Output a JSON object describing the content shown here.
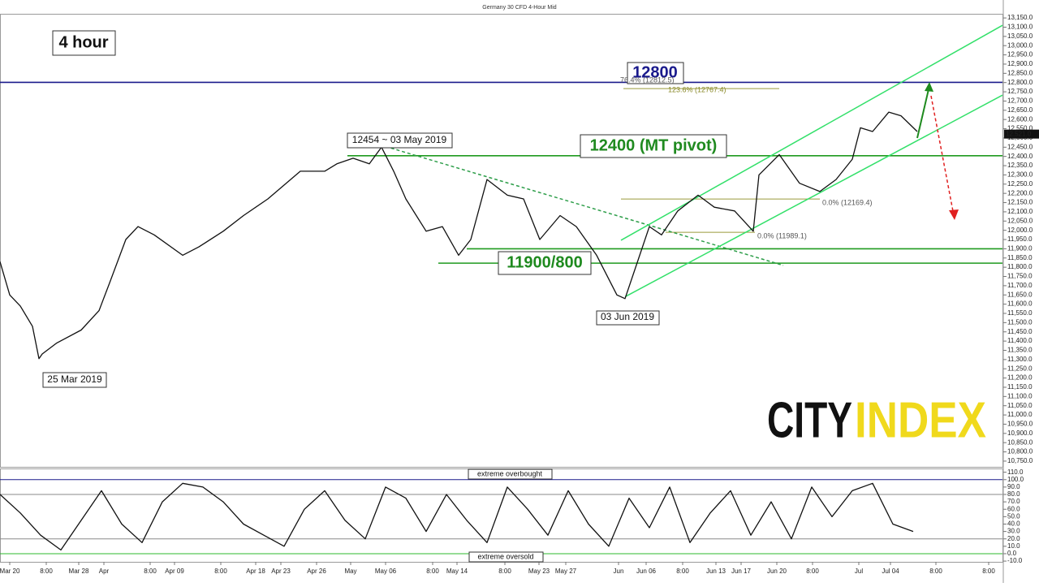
{
  "chart_data": [
    {
      "type": "line",
      "title": "Germany 30 CFD 4-Hour Mid",
      "xlim": [
        0,
        247
      ],
      "ylim": [
        10719,
        13168
      ],
      "yticks": [
        {
          "value": 13150,
          "label": "13,150.0"
        },
        {
          "value": 13100,
          "label": "13,100.0"
        },
        {
          "value": 13050,
          "label": "13,050.0"
        },
        {
          "value": 13000,
          "label": "13,000.0"
        },
        {
          "value": 12950,
          "label": "12,950.0"
        },
        {
          "value": 12900,
          "label": "12,900.0"
        },
        {
          "value": 12850,
          "label": "12,850.0"
        },
        {
          "value": 12800,
          "label": "12,800.0"
        },
        {
          "value": 12750,
          "label": "12,750.0"
        },
        {
          "value": 12700,
          "label": "12,700.0"
        },
        {
          "value": 12650,
          "label": "12,650.0"
        },
        {
          "value": 12600,
          "label": "12,600.0"
        },
        {
          "value": 12550,
          "label": "12,550.0"
        },
        {
          "value": 12500,
          "label": "12,500.0"
        },
        {
          "value": 12450,
          "label": "12,450.0"
        },
        {
          "value": 12400,
          "label": "12,400.0"
        },
        {
          "value": 12350,
          "label": "12,350.0"
        },
        {
          "value": 12300,
          "label": "12,300.0"
        },
        {
          "value": 12250,
          "label": "12,250.0"
        },
        {
          "value": 12200,
          "label": "12,200.0"
        },
        {
          "value": 12150,
          "label": "12,150.0"
        },
        {
          "value": 12100,
          "label": "12,100.0"
        },
        {
          "value": 12050,
          "label": "12,050.0"
        },
        {
          "value": 12000,
          "label": "12,000.0"
        },
        {
          "value": 11950,
          "label": "11,950.0"
        },
        {
          "value": 11900,
          "label": "11,900.0"
        },
        {
          "value": 11850,
          "label": "11,850.0"
        },
        {
          "value": 11800,
          "label": "11,800.0"
        },
        {
          "value": 11750,
          "label": "11,750.0"
        },
        {
          "value": 11700,
          "label": "11,700.0"
        },
        {
          "value": 11650,
          "label": "11,650.0"
        },
        {
          "value": 11600,
          "label": "11,600.0"
        },
        {
          "value": 11550,
          "label": "11,550.0"
        },
        {
          "value": 11500,
          "label": "11,500.0"
        },
        {
          "value": 11450,
          "label": "11,450.0"
        },
        {
          "value": 11400,
          "label": "11,400.0"
        },
        {
          "value": 11350,
          "label": "11,350.0"
        },
        {
          "value": 11300,
          "label": "11,300.0"
        },
        {
          "value": 11250,
          "label": "11,250.0"
        },
        {
          "value": 11200,
          "label": "11,200.0"
        },
        {
          "value": 11150,
          "label": "11,150.0"
        },
        {
          "value": 11100,
          "label": "11,100.0"
        },
        {
          "value": 11050,
          "label": "11,050.0"
        },
        {
          "value": 11000,
          "label": "11,000.0"
        },
        {
          "value": 10950,
          "label": "10,950.0"
        },
        {
          "value": 10900,
          "label": "10,900.0"
        },
        {
          "value": 10850,
          "label": "10,850.0"
        },
        {
          "value": 10800,
          "label": "10,800.0"
        },
        {
          "value": 10750,
          "label": "10,750.0"
        }
      ],
      "series": [
        {
          "color": "#111111",
          "x": [
            0,
            2.4,
            5,
            8,
            9.6,
            10.4,
            14,
            20,
            24.4,
            27,
            31,
            34,
            38,
            45,
            49,
            55,
            60,
            66,
            74,
            80,
            83,
            87,
            91,
            94,
            97,
            100,
            105,
            109,
            113,
            116,
            120,
            125,
            129,
            133,
            138,
            142,
            147,
            152,
            154,
            157,
            160,
            163,
            167,
            172,
            176,
            181,
            185.6,
            187,
            192,
            197,
            202,
            206,
            210,
            212,
            215,
            219,
            222,
            226
          ],
          "values": [
            11830,
            11650,
            11590,
            11480,
            11305,
            11330,
            11390,
            11460,
            11565,
            11715,
            11950,
            12020,
            11975,
            11865,
            11910,
            11995,
            12080,
            12170,
            12320,
            12320,
            12360,
            12390,
            12360,
            12450,
            12320,
            12170,
            11995,
            12020,
            11865,
            11950,
            12275,
            12190,
            12170,
            11950,
            12080,
            12020,
            11865,
            11650,
            11630,
            11825,
            12020,
            11975,
            12105,
            12190,
            12125,
            12105,
            11995,
            12300,
            12410,
            12255,
            12210,
            12275,
            12385,
            12555,
            12535,
            12640,
            12620,
            12535
          ]
        }
      ],
      "levels": [
        {
          "value": 12801,
          "x_start": 0,
          "color": "#1a1a8c"
        },
        {
          "value": 12404,
          "x_start": 85.6,
          "color": "#1f9a1f"
        },
        {
          "value": 11900,
          "x_start": 115,
          "color": "#1f9a1f"
        },
        {
          "value": 11822,
          "x_start": 108,
          "color": "#1f9a1f"
        }
      ],
      "trendlines": [
        {
          "x1": 95,
          "y1": 12454,
          "x2": 193,
          "y2": 11810,
          "color": "#2e9e4a",
          "dashed": true
        },
        {
          "x1": 153,
          "y1": 11946,
          "x2": 247,
          "y2": 13110,
          "color": "#33e06a",
          "dashed": false
        },
        {
          "x1": 154,
          "y1": 11640,
          "x2": 247,
          "y2": 12732,
          "color": "#33e06a",
          "dashed": false
        }
      ],
      "fib_lines": [
        {
          "value": 12767.4,
          "x_start": 153.6,
          "x_end": 192,
          "color": "#9a9a3a"
        },
        {
          "value": 12169.4,
          "x_start": 153,
          "x_end": 202,
          "color": "#9a9a3a"
        },
        {
          "value": 11989.1,
          "x_start": 164,
          "x_end": 186,
          "color": "#9a9a3a"
        }
      ],
      "last_price": {
        "value": 12521,
        "label": "12,521.0"
      },
      "annotations": [
        "4 hour",
        "12800",
        "12400 (MT pivot)",
        "11900/800",
        "12454 ~ 03 May 2019",
        "25 Mar 2019",
        "03 Jun 2019",
        "76.4% (12812.5)",
        "123.6% (12767.4)",
        "0.0% (12169.4)",
        "0.0% (11989.1)"
      ]
    },
    {
      "type": "line",
      "xlim": [
        0,
        247
      ],
      "ylim": [
        -11,
        114
      ],
      "yticks": [
        {
          "value": 110,
          "label": "110.0"
        },
        {
          "value": 100,
          "label": "100.0"
        },
        {
          "value": 90,
          "label": "90.0"
        },
        {
          "value": 80,
          "label": "80.0"
        },
        {
          "value": 70,
          "label": "70.0"
        },
        {
          "value": 60,
          "label": "60.0"
        },
        {
          "value": 50,
          "label": "50.0"
        },
        {
          "value": 40,
          "label": "40.0"
        },
        {
          "value": 30,
          "label": "30.0"
        },
        {
          "value": 20,
          "label": "20.0"
        },
        {
          "value": 10,
          "label": "10.0"
        },
        {
          "value": 0,
          "label": "0.0"
        },
        {
          "value": -10,
          "label": "-10.0"
        }
      ],
      "xticks": [
        {
          "value": 2.4,
          "label": "Mar 20"
        },
        {
          "value": 11.4,
          "label": "8:00"
        },
        {
          "value": 19.4,
          "label": "Mar 28"
        },
        {
          "value": 25.6,
          "label": "Apr"
        },
        {
          "value": 37,
          "label": "8:00"
        },
        {
          "value": 43,
          "label": "Apr 09"
        },
        {
          "value": 54.4,
          "label": "8:00"
        },
        {
          "value": 63,
          "label": "Apr 18"
        },
        {
          "value": 69.2,
          "label": "Apr 23"
        },
        {
          "value": 78,
          "label": "Apr 26"
        },
        {
          "value": 86.4,
          "label": "May"
        },
        {
          "value": 95,
          "label": "May 06"
        },
        {
          "value": 106.6,
          "label": "8:00"
        },
        {
          "value": 112.6,
          "label": "May 14"
        },
        {
          "value": 124.4,
          "label": "8:00"
        },
        {
          "value": 132.8,
          "label": "May 23"
        },
        {
          "value": 139.4,
          "label": "May 27"
        },
        {
          "value": 152.4,
          "label": "Jun"
        },
        {
          "value": 159.2,
          "label": "Jun 06"
        },
        {
          "value": 168.2,
          "label": "8:00"
        },
        {
          "value": 176.4,
          "label": "Jun 13"
        },
        {
          "value": 182.6,
          "label": "Jun 17"
        },
        {
          "value": 191.4,
          "label": "Jun 20"
        },
        {
          "value": 200.2,
          "label": "8:00"
        },
        {
          "value": 211.6,
          "label": "Jul"
        },
        {
          "value": 219.4,
          "label": "Jul 04"
        },
        {
          "value": 230.6,
          "label": "8:00"
        },
        {
          "value": 243.6,
          "label": "8:00"
        }
      ],
      "series": [
        {
          "color": "#111111",
          "x": [
            0,
            5,
            10,
            15,
            20,
            25,
            30,
            35,
            40,
            45,
            50,
            55,
            60,
            65,
            70,
            75,
            80,
            85,
            90,
            95,
            100,
            105,
            110,
            115,
            120,
            125,
            130,
            135,
            140,
            145,
            150,
            155,
            160,
            165,
            170,
            175,
            180,
            185,
            190,
            195,
            200,
            205,
            210,
            215,
            220,
            225
          ],
          "values": [
            80,
            55,
            25,
            5,
            45,
            85,
            40,
            15,
            70,
            95,
            90,
            70,
            40,
            25,
            10,
            60,
            85,
            45,
            20,
            90,
            75,
            30,
            80,
            45,
            15,
            90,
            60,
            25,
            85,
            40,
            10,
            75,
            35,
            90,
            15,
            55,
            85,
            25,
            70,
            20,
            90,
            50,
            85,
            95,
            40,
            30
          ]
        }
      ],
      "levels": [
        {
          "value": 100,
          "x_start": 0,
          "color": "#1a1a8c"
        },
        {
          "value": 80,
          "x_start": 0,
          "color": "#8a8a8a"
        },
        {
          "value": 20,
          "x_start": 0,
          "color": "#8a8a8a"
        },
        {
          "value": 0,
          "x_start": 0,
          "color": "#2db82d"
        }
      ],
      "annotations": [
        "extreme overbought",
        "extreme oversold"
      ]
    }
  ],
  "logo": {
    "left": "CITY",
    "right": "INDEX"
  }
}
